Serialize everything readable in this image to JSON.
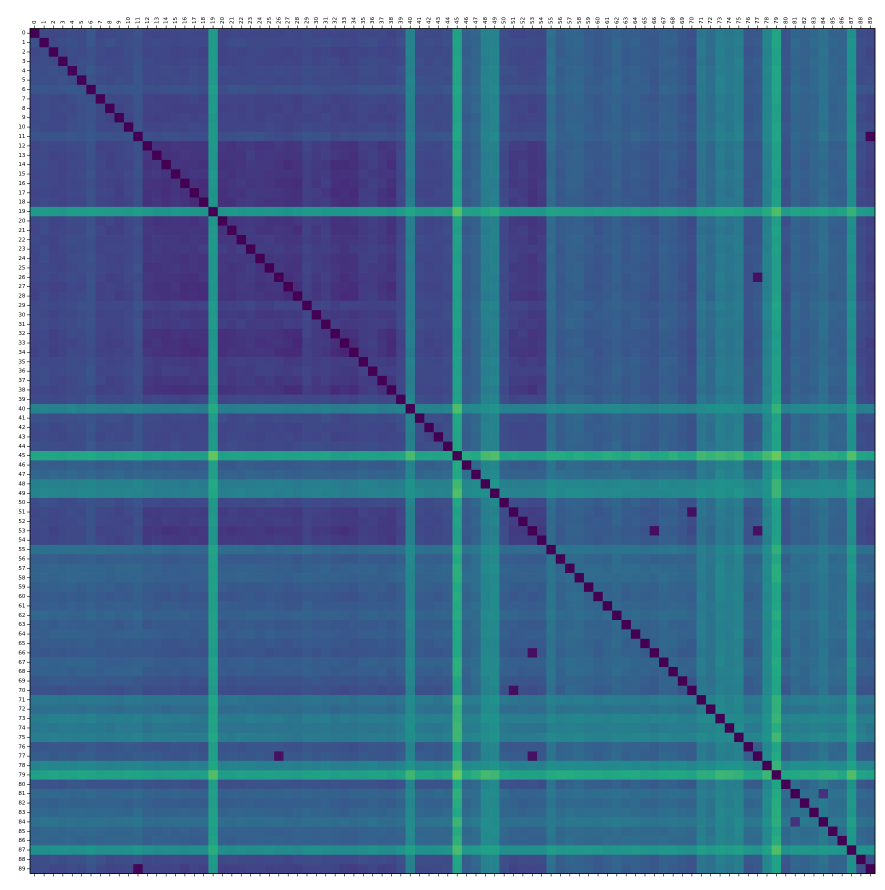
{
  "chart_data": {
    "type": "heatmap",
    "title": "",
    "xlabel": "",
    "ylabel": "",
    "colormap": "viridis",
    "size": 90,
    "x_tick_labels": [
      "0",
      "1",
      "2",
      "3",
      "4",
      "5",
      "6",
      "7",
      "8",
      "9",
      "10",
      "11",
      "12",
      "13",
      "14",
      "15",
      "16",
      "17",
      "18",
      "19",
      "20",
      "21",
      "22",
      "23",
      "24",
      "25",
      "26",
      "27",
      "28",
      "29",
      "30",
      "31",
      "32",
      "33",
      "34",
      "35",
      "36",
      "37",
      "38",
      "39",
      "40",
      "41",
      "42",
      "43",
      "44",
      "45",
      "46",
      "47",
      "48",
      "49",
      "50",
      "51",
      "52",
      "53",
      "54",
      "55",
      "56",
      "57",
      "58",
      "59",
      "60",
      "61",
      "62",
      "63",
      "64",
      "65",
      "66",
      "67",
      "68",
      "69",
      "70",
      "71",
      "72",
      "73",
      "74",
      "75",
      "76",
      "77",
      "78",
      "79",
      "80",
      "81",
      "82",
      "83",
      "84",
      "85",
      "86",
      "87",
      "88",
      "89"
    ],
    "y_tick_labels": [
      "0",
      "1",
      "2",
      "3",
      "4",
      "5",
      "6",
      "7",
      "8",
      "9",
      "10",
      "11",
      "12",
      "13",
      "14",
      "15",
      "16",
      "17",
      "18",
      "19",
      "20",
      "21",
      "22",
      "23",
      "24",
      "25",
      "26",
      "27",
      "28",
      "29",
      "30",
      "31",
      "32",
      "33",
      "34",
      "35",
      "36",
      "37",
      "38",
      "39",
      "40",
      "41",
      "42",
      "43",
      "44",
      "45",
      "46",
      "47",
      "48",
      "49",
      "50",
      "51",
      "52",
      "53",
      "54",
      "55",
      "56",
      "57",
      "58",
      "59",
      "60",
      "61",
      "62",
      "63",
      "64",
      "65",
      "66",
      "67",
      "68",
      "69",
      "70",
      "71",
      "72",
      "73",
      "74",
      "75",
      "76",
      "77",
      "78",
      "79",
      "80",
      "81",
      "82",
      "83",
      "84",
      "85",
      "86",
      "87",
      "88",
      "89"
    ],
    "value_range": [
      0,
      1
    ],
    "row_profile": [
      0.28,
      0.3,
      0.27,
      0.28,
      0.3,
      0.3,
      0.34,
      0.27,
      0.26,
      0.26,
      0.28,
      0.33,
      0.2,
      0.2,
      0.18,
      0.19,
      0.17,
      0.17,
      0.17,
      0.78,
      0.19,
      0.19,
      0.21,
      0.22,
      0.2,
      0.2,
      0.19,
      0.17,
      0.16,
      0.26,
      0.22,
      0.23,
      0.17,
      0.15,
      0.15,
      0.23,
      0.24,
      0.21,
      0.17,
      0.28,
      0.62,
      0.3,
      0.28,
      0.28,
      0.3,
      0.85,
      0.4,
      0.45,
      0.62,
      0.64,
      0.3,
      0.23,
      0.23,
      0.2,
      0.22,
      0.5,
      0.4,
      0.44,
      0.44,
      0.4,
      0.38,
      0.4,
      0.44,
      0.39,
      0.41,
      0.38,
      0.36,
      0.42,
      0.41,
      0.36,
      0.32,
      0.55,
      0.5,
      0.6,
      0.56,
      0.6,
      0.36,
      0.38,
      0.64,
      0.84,
      0.34,
      0.46,
      0.42,
      0.46,
      0.52,
      0.44,
      0.44,
      0.72,
      0.3,
      0.26
    ],
    "outliers": [
      {
        "row": 11,
        "col": 89,
        "value": 0.02
      },
      {
        "row": 89,
        "col": 11,
        "value": 0.02
      },
      {
        "row": 66,
        "col": 53,
        "value": 0.05
      },
      {
        "row": 53,
        "col": 66,
        "value": 0.05
      },
      {
        "row": 70,
        "col": 51,
        "value": 0.05
      },
      {
        "row": 51,
        "col": 70,
        "value": 0.05
      },
      {
        "row": 77,
        "col": 26,
        "value": 0.06
      },
      {
        "row": 26,
        "col": 77,
        "value": 0.06
      },
      {
        "row": 53,
        "col": 77,
        "value": 0.06
      },
      {
        "row": 77,
        "col": 53,
        "value": 0.06
      },
      {
        "row": 84,
        "col": 81,
        "value": 0.18
      },
      {
        "row": 81,
        "col": 84,
        "value": 0.18
      }
    ]
  }
}
